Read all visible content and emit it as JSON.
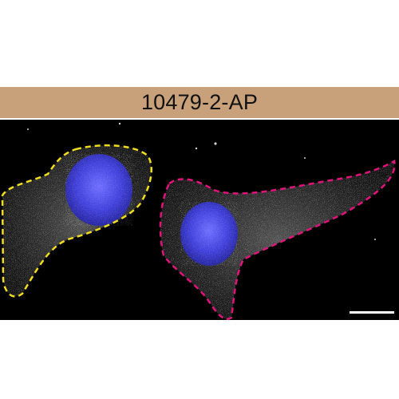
{
  "banner": {
    "label": "10479-2-AP",
    "color": "#c8a07a"
  },
  "micrograph": {
    "background": "#000000",
    "stain_colors": {
      "nucleus": "#3b3bd6",
      "signal": "#d9d9d9"
    },
    "cell_outline_colors": [
      "#f0dd1d",
      "#e0137a"
    ],
    "cells": [
      {
        "outline_color": "#f0dd1d"
      },
      {
        "outline_color": "#e0137a"
      }
    ],
    "scale_bar_color": "#ffffff"
  }
}
